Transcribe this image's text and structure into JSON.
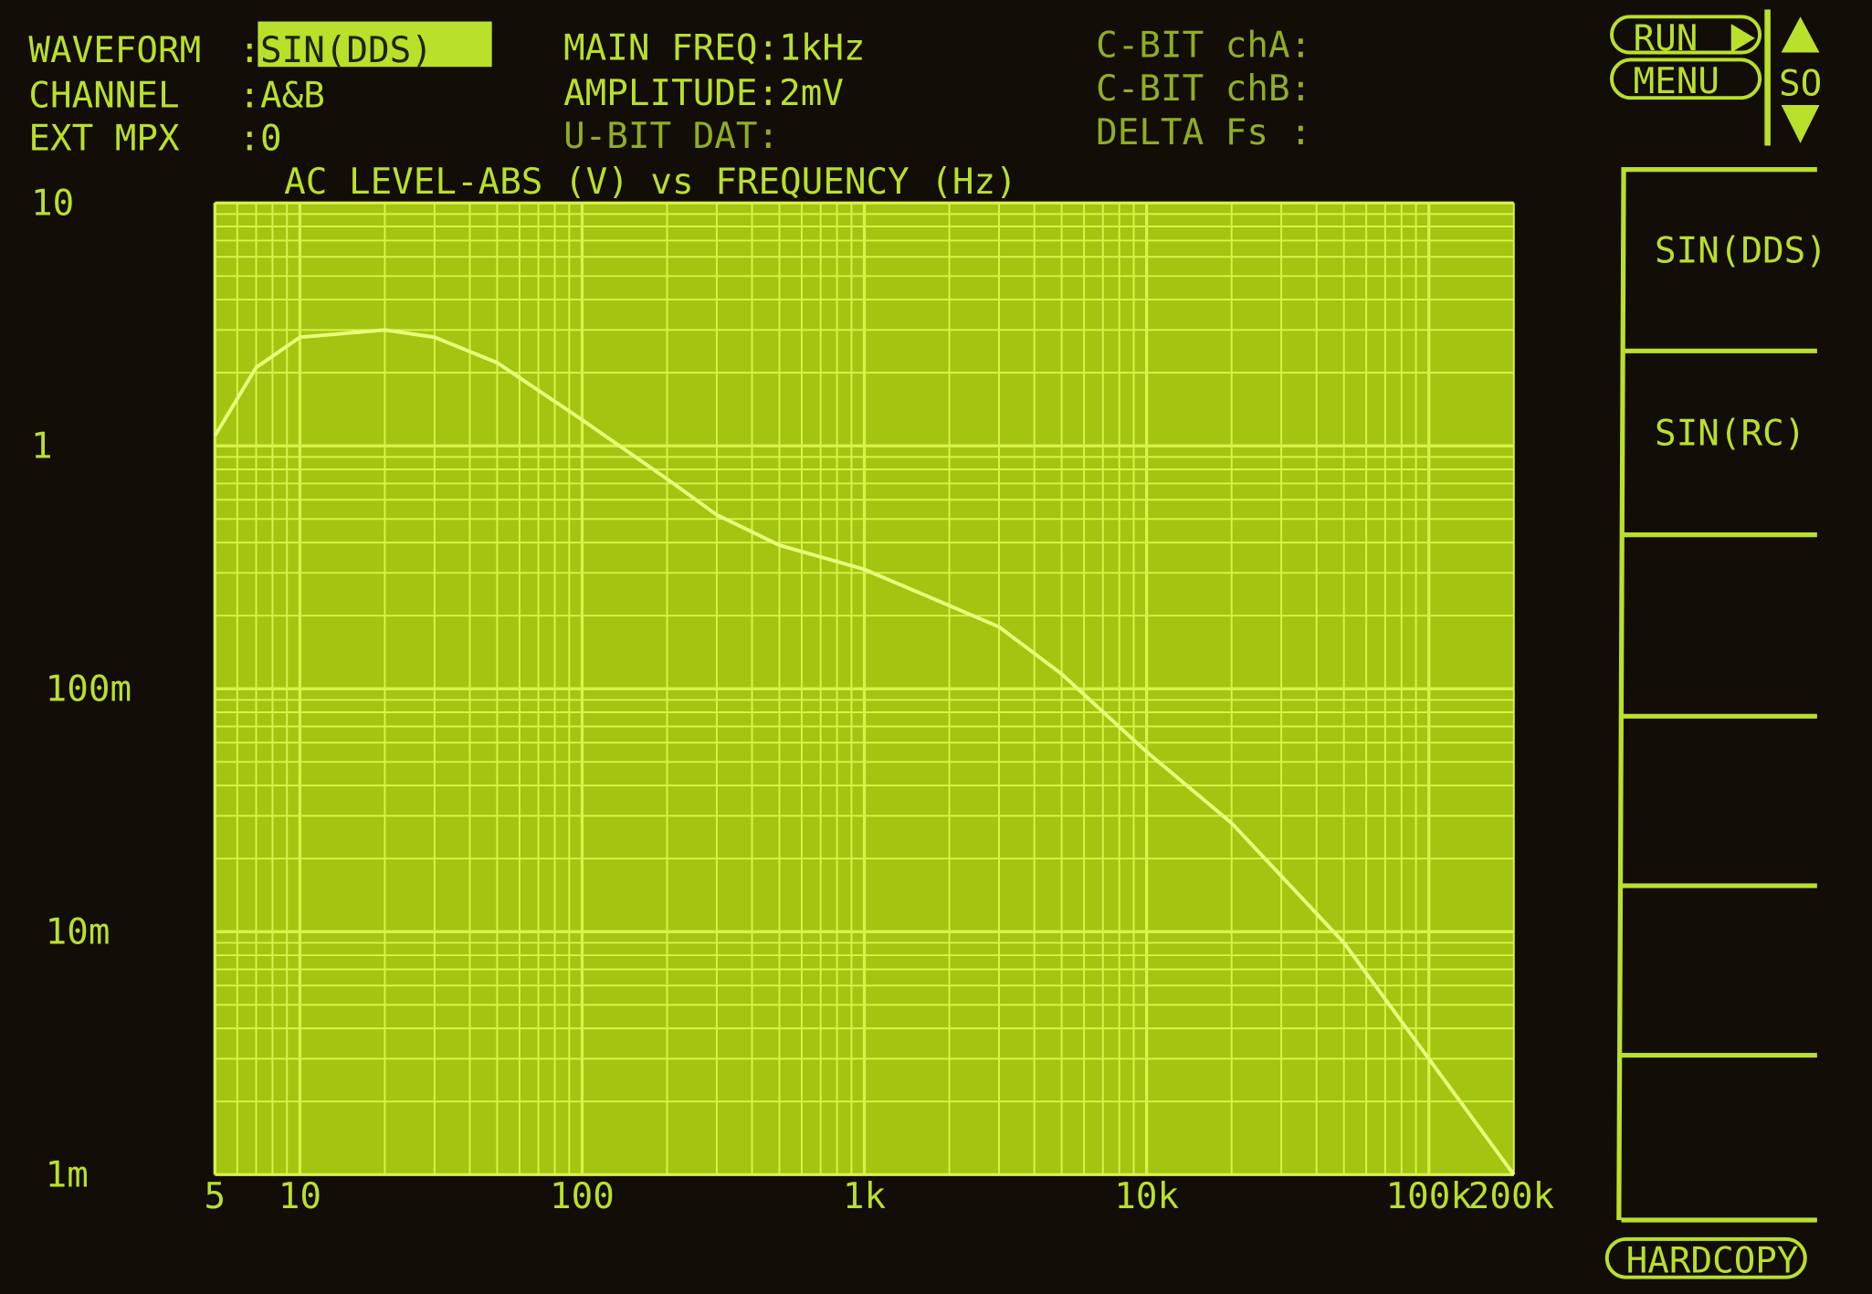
{
  "header": {
    "waveform_label": "WAVEFORM",
    "waveform_value": "SIN(DDS)",
    "channel_label": "CHANNEL",
    "channel_value": "A&B",
    "ext_mpx_label": "EXT MPX",
    "ext_mpx_value": "0",
    "main_freq": "MAIN FREQ:1kHz",
    "amplitude": "AMPLITUDE:2mV",
    "u_bit_dat": "U-BIT DAT:",
    "c_bit_cha": "C-BIT chA:",
    "c_bit_chb": "C-BIT chB:",
    "delta_fs": "DELTA Fs :"
  },
  "controls": {
    "run": "RUN",
    "menu": "MENU",
    "so": "SO",
    "hardcopy": "HARDCOPY",
    "softkeys": [
      "SIN(DDS)",
      "SIN(RC)",
      "",
      "",
      "",
      ""
    ]
  },
  "colors": {
    "background": "#120d06",
    "phosphor": "#b9e02a",
    "plot_fill": "#a3c410",
    "grid": "#d8f24a"
  },
  "chart_data": {
    "type": "line",
    "title": "AC LEVEL-ABS (V) vs FREQUENCY (Hz)",
    "x_scale": "log",
    "y_scale": "log",
    "xlim": [
      5,
      200000
    ],
    "ylim": [
      0.001,
      10
    ],
    "grid": true,
    "x_tick_labels": [
      "5",
      "10",
      "100",
      "1k",
      "10k",
      "100k",
      "200k"
    ],
    "x_tick_values": [
      5,
      10,
      100,
      1000,
      10000,
      100000,
      200000
    ],
    "y_tick_labels": [
      "10",
      "1",
      "100m",
      "10m",
      "1m"
    ],
    "y_tick_values": [
      10,
      1,
      0.1,
      0.01,
      0.001
    ],
    "series": [
      {
        "x": [
          5,
          7,
          10,
          20,
          30,
          50,
          100,
          200,
          300,
          500,
          1000,
          2000,
          3000,
          5000,
          10000,
          20000,
          50000,
          100000,
          200000
        ],
        "y": [
          1.1,
          2.1,
          2.8,
          3.0,
          2.8,
          2.2,
          1.28,
          0.73,
          0.52,
          0.39,
          0.31,
          0.22,
          0.18,
          0.115,
          0.055,
          0.028,
          0.009,
          0.003,
          0.001
        ]
      }
    ]
  }
}
